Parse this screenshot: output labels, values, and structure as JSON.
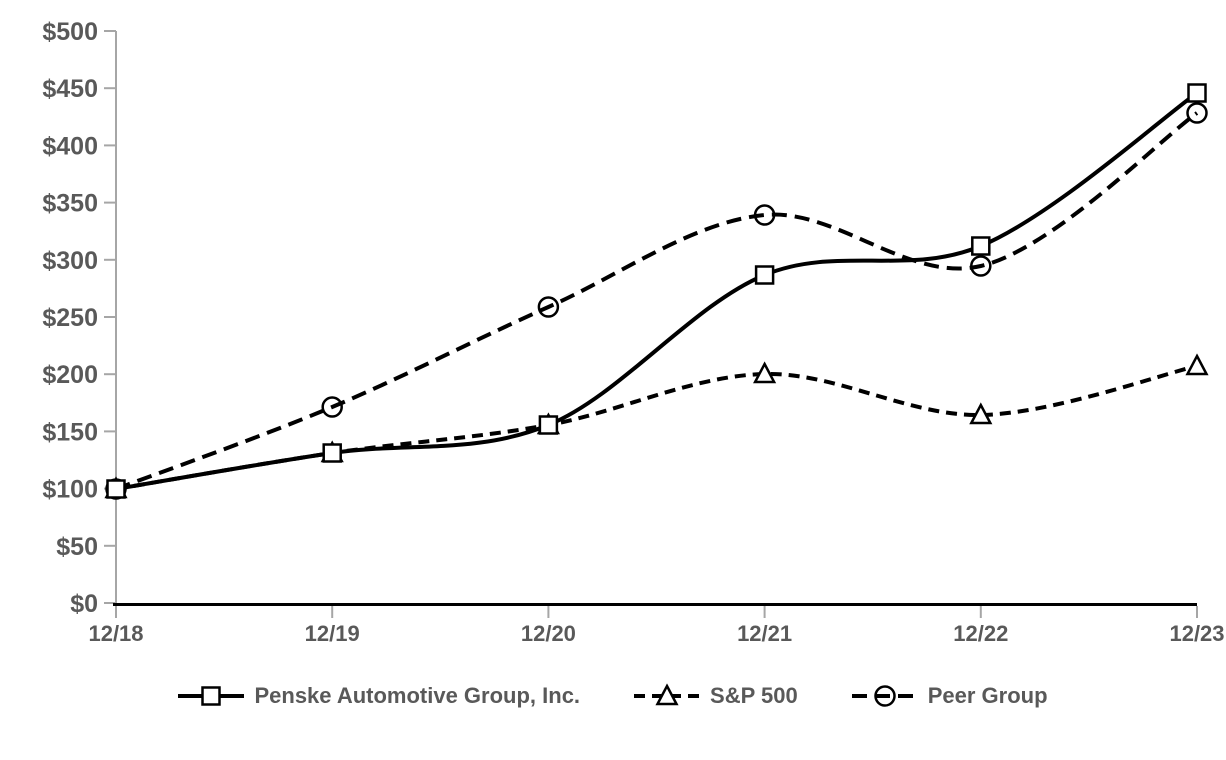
{
  "chart_data": {
    "type": "line",
    "title": "",
    "xlabel": "",
    "ylabel": "",
    "categories": [
      "12/18",
      "12/19",
      "12/20",
      "12/21",
      "12/22",
      "12/23"
    ],
    "series": [
      {
        "name": "Penske Automotive Group, Inc.",
        "values": [
          100,
          131,
          156,
          287,
          312,
          446
        ],
        "marker": "square",
        "line_style": "solid"
      },
      {
        "name": "S&P 500",
        "values": [
          100,
          131,
          156,
          200,
          164,
          207
        ],
        "marker": "triangle",
        "line_style": "dashed"
      },
      {
        "name": "Peer Group",
        "values": [
          100,
          171,
          259,
          339,
          295,
          428
        ],
        "marker": "circle",
        "line_style": "long-dash"
      }
    ],
    "ylim": [
      0,
      500
    ],
    "ytick_step": 50,
    "ytick_labels": [
      "$0",
      "$50",
      "$100",
      "$150",
      "$200",
      "$250",
      "$300",
      "$350",
      "$400",
      "$450",
      "$500"
    ],
    "grid": false,
    "legend_position": "bottom",
    "line_smoothing": true,
    "colors": {
      "series_line": "#000000",
      "marker_fill": "#ffffff",
      "axis_line": "#a6a6a6",
      "x_axis_line": "#000000",
      "tick_text": "#595959",
      "background": "#ffffff"
    }
  }
}
